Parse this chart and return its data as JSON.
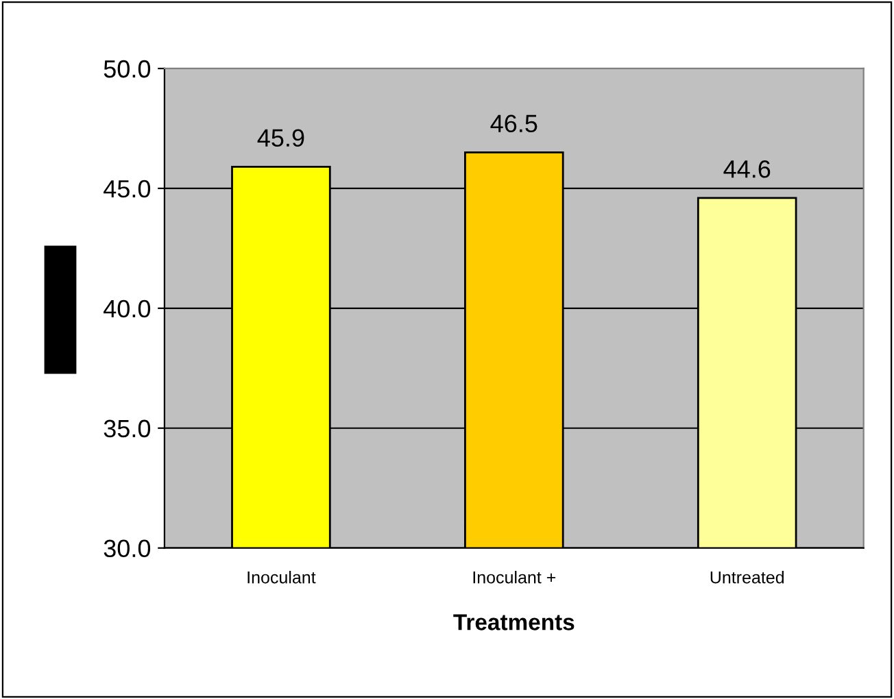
{
  "chart_data": {
    "type": "bar",
    "xlabel": "Treatments",
    "categories": [
      "Inoculant",
      "Inoculant +",
      "Untreated"
    ],
    "values": [
      45.9,
      46.5,
      44.6
    ],
    "colors": [
      "#ffff00",
      "#ffcc00",
      "#ffff99"
    ],
    "ylim": [
      30.0,
      50.0
    ],
    "yticks": [
      {
        "value": 30,
        "label": "30.0"
      },
      {
        "value": 35,
        "label": "35.0"
      },
      {
        "value": 40,
        "label": "40.0"
      },
      {
        "value": 45,
        "label": "45.0"
      },
      {
        "value": 50,
        "label": "50.0"
      }
    ],
    "grid": "y",
    "data_labels": true
  }
}
